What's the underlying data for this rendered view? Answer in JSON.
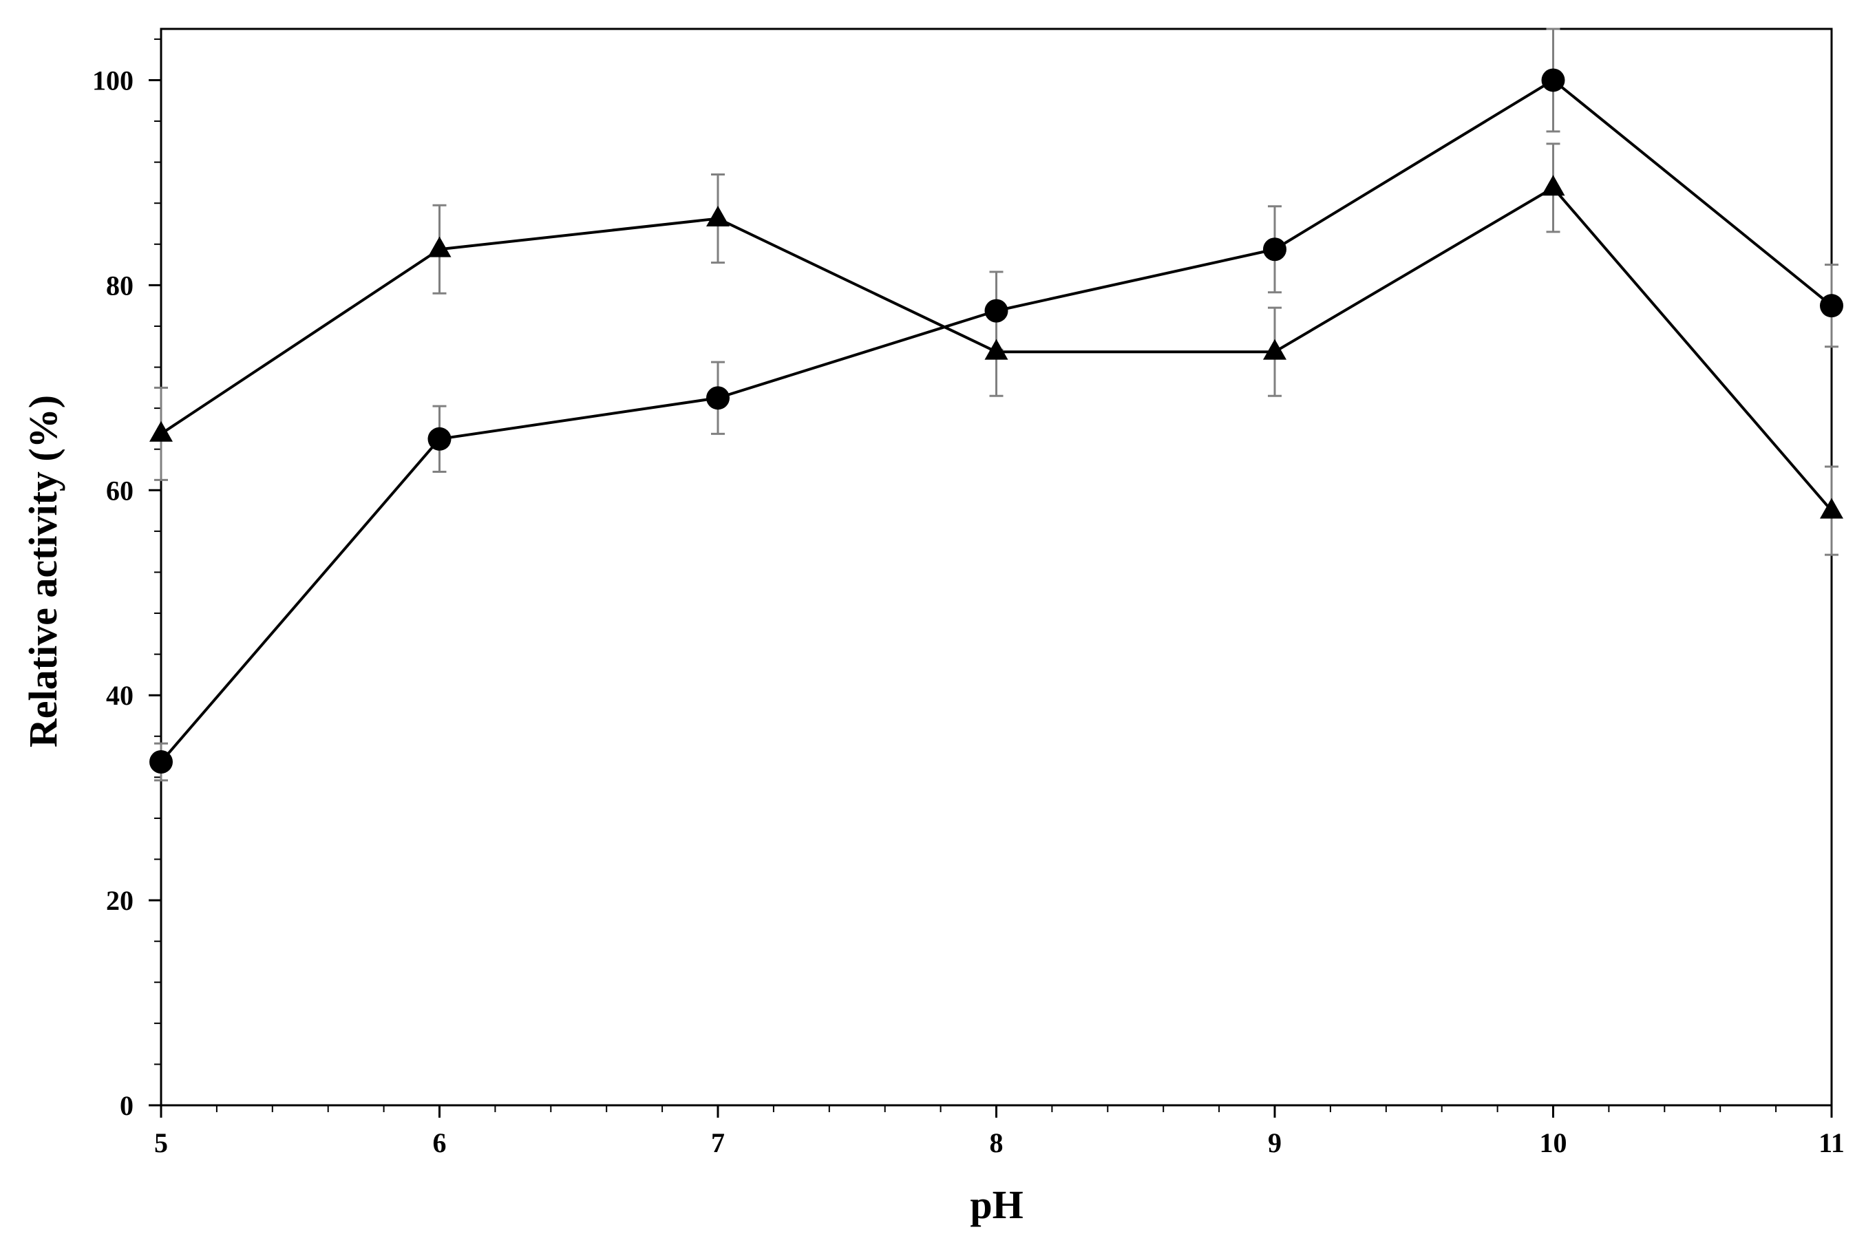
{
  "chart_data": {
    "type": "line",
    "title": "",
    "xlabel": "pH",
    "ylabel": "Relative activity (%)",
    "xlim": [
      5,
      11
    ],
    "ylim": [
      0,
      105
    ],
    "xticks": [
      5,
      6,
      7,
      8,
      9,
      10,
      11
    ],
    "yticks": [
      0,
      20,
      40,
      60,
      80,
      100
    ],
    "x_minor_step": 0.2,
    "y_minor_step": 4,
    "grid": false,
    "legend": "none",
    "x": [
      5,
      6,
      7,
      8,
      9,
      10,
      11
    ],
    "series": [
      {
        "marker": "circle",
        "color": "#000000",
        "values": [
          33.5,
          65,
          69,
          77.5,
          83.5,
          100,
          78
        ],
        "error": [
          1.8,
          3.2,
          3.5,
          3.8,
          4.2,
          5.0,
          4.0
        ]
      },
      {
        "marker": "triangle",
        "color": "#000000",
        "values": [
          65.5,
          83.5,
          86.5,
          73.5,
          73.5,
          89.5,
          58
        ],
        "error": [
          4.5,
          4.3,
          4.3,
          4.3,
          4.3,
          4.3,
          4.3
        ]
      }
    ],
    "errorbar_color": "#808080"
  }
}
